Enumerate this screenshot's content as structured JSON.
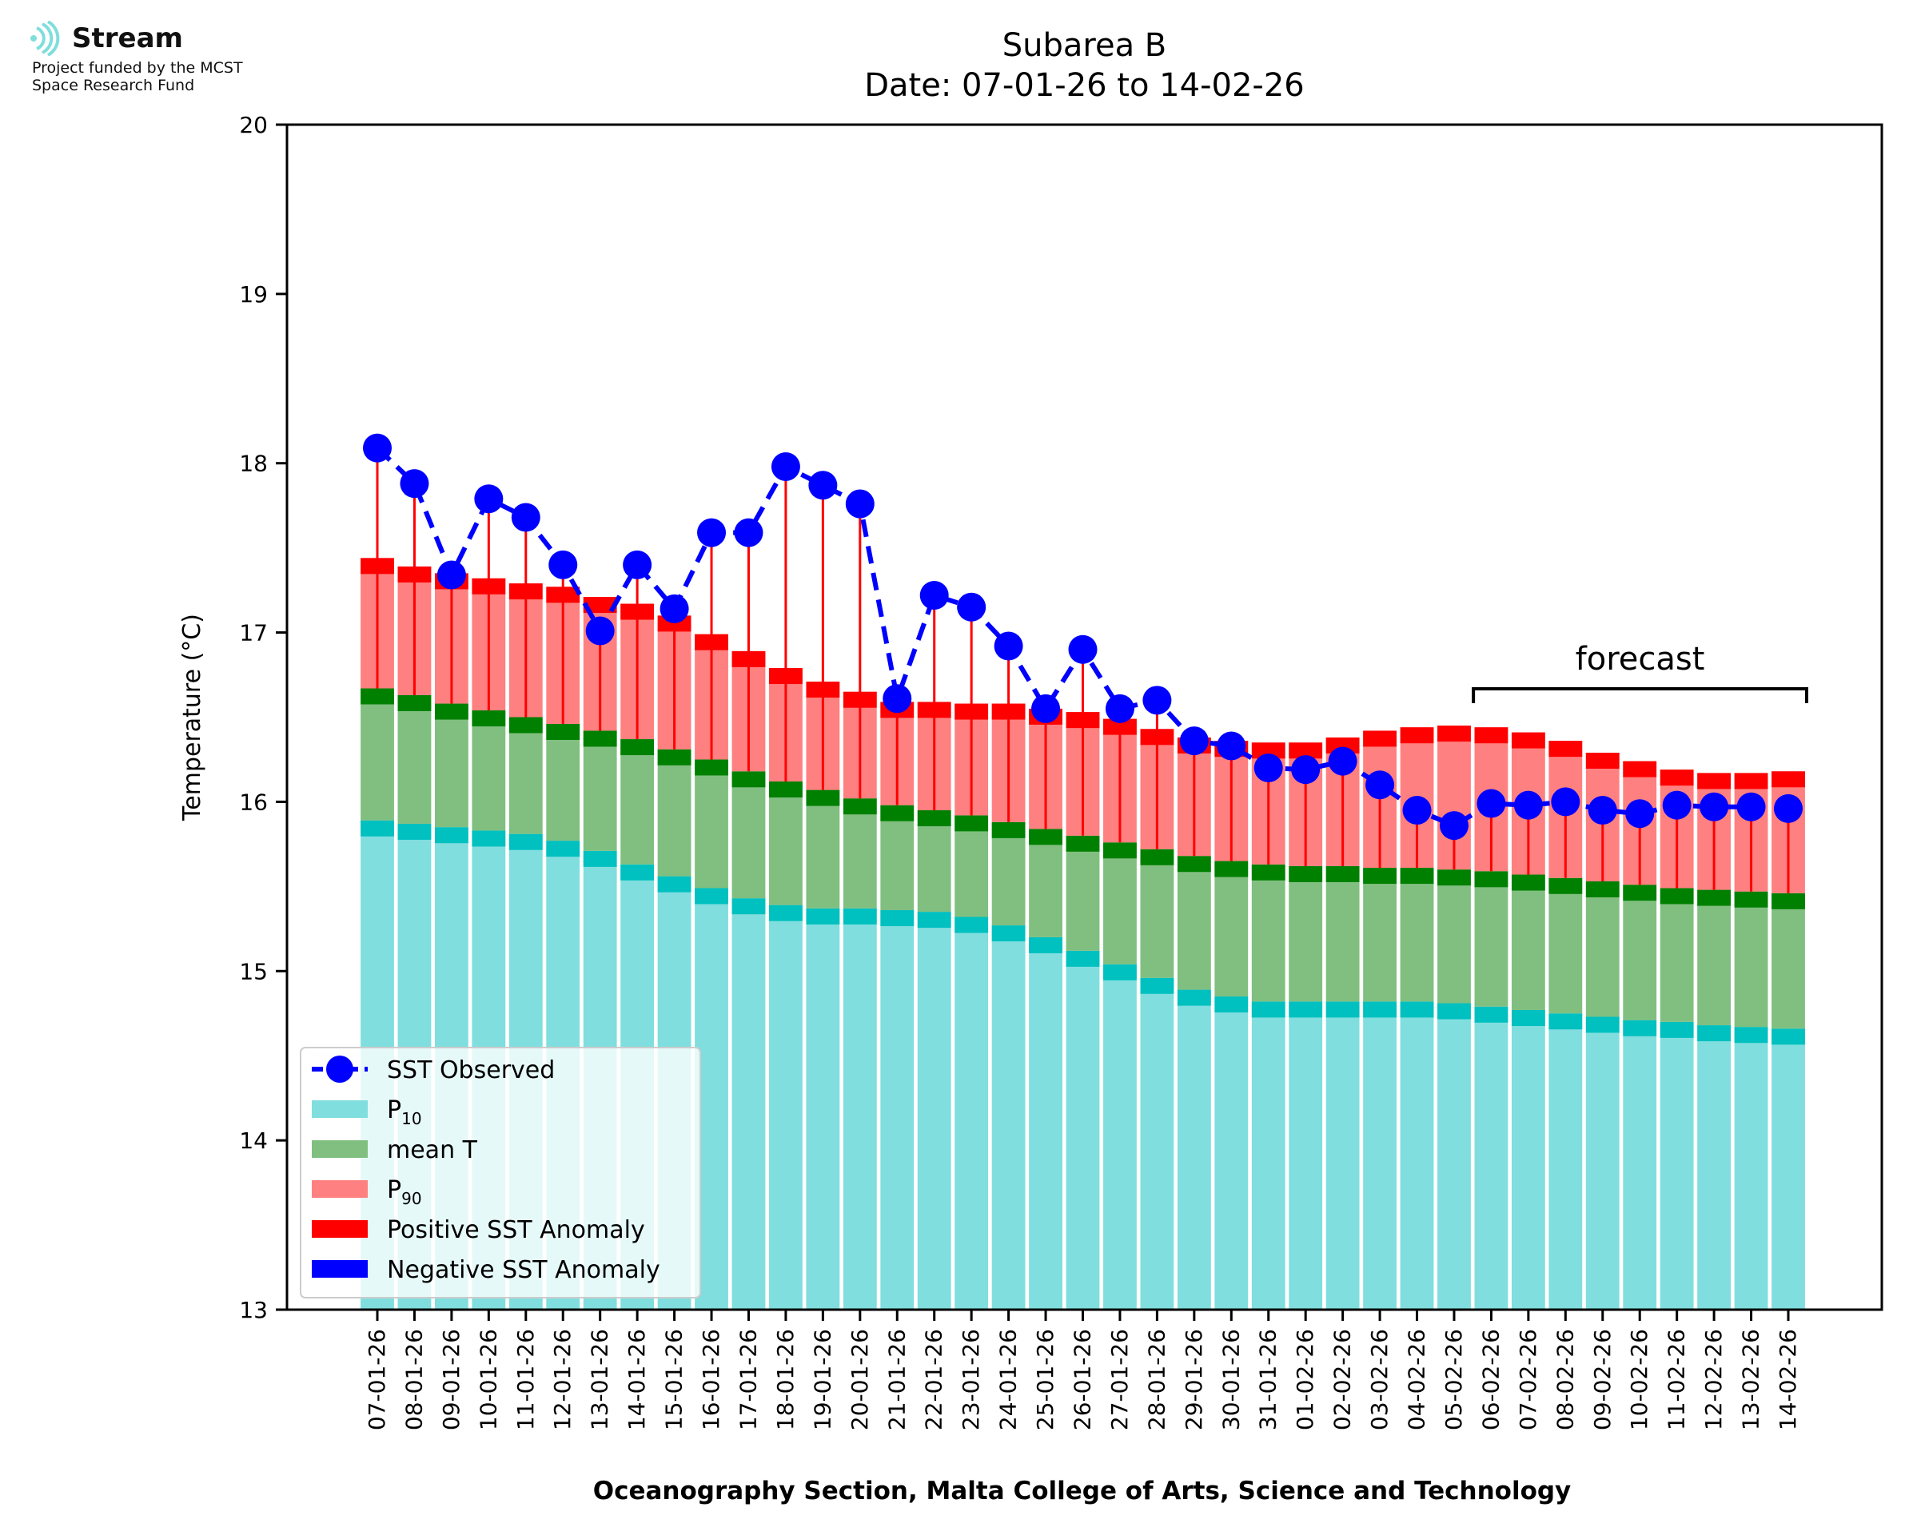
{
  "branding": {
    "name": "Stream",
    "line1": "Project funded by the MCST",
    "line2": "Space Research Fund",
    "logo_color": "#7fdedc"
  },
  "chart_data": {
    "type": "bar",
    "title": "Subarea B",
    "subtitle": "Date: 07-01-26 to 14-02-26",
    "xlabel": "Oceanography Section, Malta College of Arts, Science and Technology",
    "ylabel": "Temperature (°C)",
    "ylim": [
      13,
      20
    ],
    "yticks": [
      13,
      14,
      15,
      16,
      17,
      18,
      19,
      20
    ],
    "grid": false,
    "legend_position": "lower-left",
    "annotation": "forecast",
    "forecast_range": [
      "06-02-26",
      "14-02-26"
    ],
    "categories": [
      "07-01-26",
      "08-01-26",
      "09-01-26",
      "10-01-26",
      "11-01-26",
      "12-01-26",
      "13-01-26",
      "14-01-26",
      "15-01-26",
      "16-01-26",
      "17-01-26",
      "18-01-26",
      "19-01-26",
      "20-01-26",
      "21-01-26",
      "22-01-26",
      "23-01-26",
      "24-01-26",
      "25-01-26",
      "26-01-26",
      "27-01-26",
      "28-01-26",
      "29-01-26",
      "30-01-26",
      "31-01-26",
      "01-02-26",
      "02-02-26",
      "03-02-26",
      "04-02-26",
      "05-02-26",
      "06-02-26",
      "07-02-26",
      "08-02-26",
      "09-02-26",
      "10-02-26",
      "11-02-26",
      "12-02-26",
      "13-02-26",
      "14-02-26"
    ],
    "series": [
      {
        "name": "P10",
        "label_main": "P",
        "label_sub": "10",
        "color": "#80dede",
        "edge_color": "#00c0c0",
        "values": [
          15.89,
          15.87,
          15.85,
          15.83,
          15.81,
          15.77,
          15.71,
          15.63,
          15.56,
          15.49,
          15.43,
          15.39,
          15.37,
          15.37,
          15.36,
          15.35,
          15.32,
          15.27,
          15.2,
          15.12,
          15.04,
          14.96,
          14.89,
          14.85,
          14.82,
          14.82,
          14.82,
          14.82,
          14.82,
          14.81,
          14.79,
          14.77,
          14.75,
          14.73,
          14.71,
          14.7,
          14.68,
          14.67,
          14.66
        ]
      },
      {
        "name": "mean T",
        "color": "#80bf80",
        "edge_color": "#008000",
        "values": [
          16.67,
          16.63,
          16.58,
          16.54,
          16.5,
          16.46,
          16.42,
          16.37,
          16.31,
          16.25,
          16.18,
          16.12,
          16.07,
          16.02,
          15.98,
          15.95,
          15.92,
          15.88,
          15.84,
          15.8,
          15.76,
          15.72,
          15.68,
          15.65,
          15.63,
          15.62,
          15.62,
          15.61,
          15.61,
          15.6,
          15.59,
          15.57,
          15.55,
          15.53,
          15.51,
          15.49,
          15.48,
          15.47,
          15.46
        ]
      },
      {
        "name": "P90",
        "label_main": "P",
        "label_sub": "90",
        "color": "#ff8080",
        "edge_color": "#ff0000",
        "values": [
          17.44,
          17.39,
          17.35,
          17.32,
          17.29,
          17.27,
          17.21,
          17.17,
          17.1,
          16.99,
          16.89,
          16.79,
          16.71,
          16.65,
          16.59,
          16.59,
          16.58,
          16.58,
          16.55,
          16.53,
          16.49,
          16.43,
          16.38,
          16.36,
          16.35,
          16.35,
          16.38,
          16.42,
          16.44,
          16.45,
          16.44,
          16.41,
          16.36,
          16.29,
          16.24,
          16.19,
          16.17,
          16.17,
          16.18
        ]
      },
      {
        "name": "SST Observed",
        "color": "#0000ff",
        "style": "dashed-line-with-markers",
        "values": [
          18.09,
          17.88,
          17.34,
          17.79,
          17.68,
          17.4,
          17.01,
          17.4,
          17.14,
          17.59,
          17.59,
          17.98,
          17.87,
          17.76,
          16.61,
          17.22,
          17.15,
          16.92,
          16.55,
          16.9,
          16.55,
          16.6,
          16.36,
          16.33,
          16.2,
          16.19,
          16.24,
          16.1,
          15.95,
          15.86,
          15.99,
          15.98,
          16.0,
          15.95,
          15.93,
          15.98,
          15.97,
          15.97,
          15.96
        ]
      }
    ],
    "legend": [
      {
        "label": "SST Observed",
        "kind": "line-marker",
        "color": "#0000ff"
      },
      {
        "label_main": "P",
        "label_sub": "10",
        "kind": "patch",
        "color": "#80dede"
      },
      {
        "label": "mean T",
        "kind": "patch",
        "color": "#80bf80"
      },
      {
        "label_main": "P",
        "label_sub": "90",
        "kind": "patch",
        "color": "#ff8080"
      },
      {
        "label": "Positive SST Anomaly",
        "kind": "patch",
        "color": "#ff0000"
      },
      {
        "label": "Negative SST Anomaly",
        "kind": "patch",
        "color": "#0000ff"
      }
    ]
  }
}
